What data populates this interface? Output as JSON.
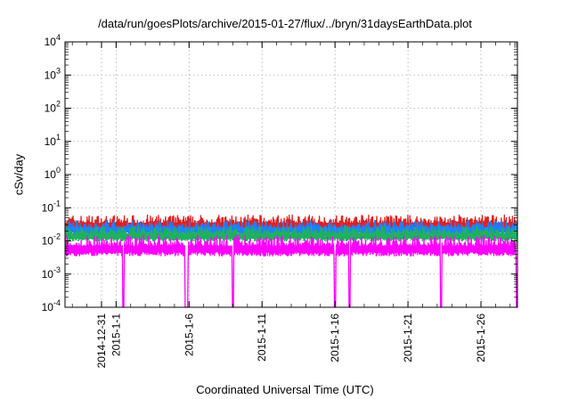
{
  "chart_data": {
    "type": "line",
    "title": "/data/run/goesPlots/archive/2015-01-27/flux/../bryn/31daysEarthData.plot",
    "xlabel": "Coordinated Universal Time (UTC)",
    "ylabel": "cSv/day",
    "y_scale": "log",
    "ylim": [
      0.0001,
      10000
    ],
    "xlim": [
      "2014-12-28T12:00",
      "2015-01-28T12:00"
    ],
    "grid": true,
    "x_ticks": [
      "2014-12-31",
      "2015-1-1",
      "2015-1-6",
      "2015-1-11",
      "2015-1-16",
      "2015-1-21",
      "2015-1-26"
    ],
    "y_ticks": [
      {
        "value": 0.0001,
        "mant": "10",
        "exp": "-4"
      },
      {
        "value": 0.001,
        "mant": "10",
        "exp": "-3"
      },
      {
        "value": 0.01,
        "mant": "10",
        "exp": "-2"
      },
      {
        "value": 0.1,
        "mant": "10",
        "exp": "-1"
      },
      {
        "value": 1,
        "mant": "10",
        "exp": "0"
      },
      {
        "value": 10,
        "mant": "10",
        "exp": "1"
      },
      {
        "value": 100,
        "mant": "10",
        "exp": "2"
      },
      {
        "value": 1000,
        "mant": "10",
        "exp": "3"
      },
      {
        "value": 10000,
        "mant": "10",
        "exp": "4"
      }
    ],
    "series": [
      {
        "color": "#e02020",
        "band_low": 0.02,
        "band_high": 0.09
      },
      {
        "color": "#2080ff",
        "band_low": 0.015,
        "band_high": 0.06
      },
      {
        "color": "#20b060",
        "band_low": 0.01,
        "band_high": 0.04
      },
      {
        "color": "#ff00ff",
        "band_low": 0.0035,
        "band_high": 0.025
      }
    ],
    "dropouts": [
      "2015-01-01T12:00",
      "2015-01-05T18:00",
      "2015-01-05T21:00",
      "2015-01-09T00:00",
      "2015-01-16T00:00",
      "2015-01-17T00:00",
      "2015-01-23T06:00",
      "2015-01-28T11:00"
    ],
    "dropout_value": 0.0001
  }
}
